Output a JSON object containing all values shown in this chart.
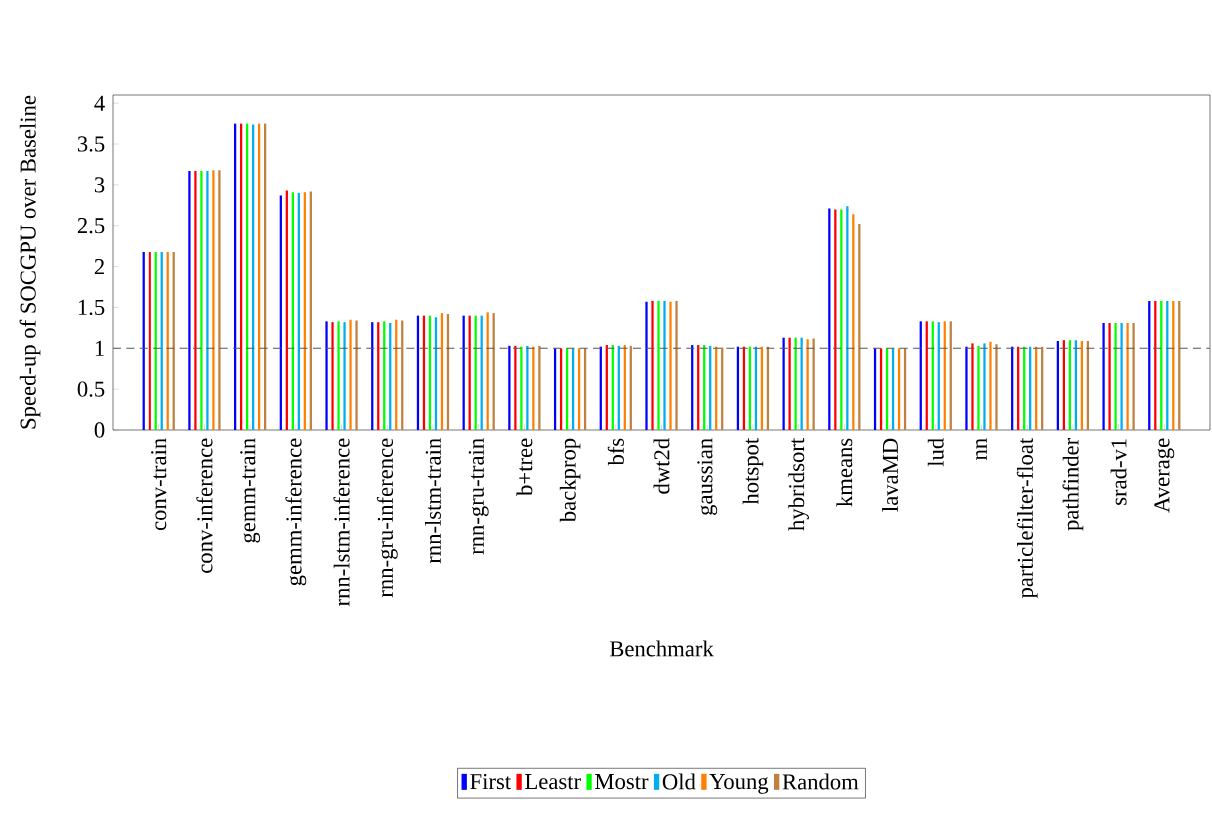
{
  "chart_data": {
    "type": "bar",
    "xlabel": "Benchmark",
    "ylabel": "Speed-up of SOCGPU over Baseline",
    "categories": [
      "conv-train",
      "conv-inference",
      "gemm-train",
      "gemm-inference",
      "rnn-lstm-inference",
      "rnn-gru-inference",
      "rnn-lstm-train",
      "rnn-gru-train",
      "b+tree",
      "backprop",
      "bfs",
      "dwt2d",
      "gaussian",
      "hotspot",
      "hybridsort",
      "kmeans",
      "lavaMD",
      "lud",
      "nn",
      "particlefilter-float",
      "pathfinder",
      "srad-v1",
      "Average"
    ],
    "series": [
      {
        "name": "First",
        "color": "#0000ff",
        "values": [
          2.18,
          3.17,
          3.75,
          2.87,
          1.33,
          1.32,
          1.4,
          1.4,
          1.03,
          1.0,
          1.02,
          1.57,
          1.04,
          1.02,
          1.13,
          2.71,
          1.0,
          1.33,
          1.02,
          1.02,
          1.09,
          1.31,
          1.58
        ]
      },
      {
        "name": "Leastr",
        "color": "#ff0000",
        "values": [
          2.18,
          3.17,
          3.75,
          2.93,
          1.32,
          1.32,
          1.4,
          1.4,
          1.03,
          1.0,
          1.04,
          1.58,
          1.04,
          1.02,
          1.13,
          2.7,
          1.0,
          1.33,
          1.06,
          1.02,
          1.1,
          1.31,
          1.58
        ]
      },
      {
        "name": "Mostr",
        "color": "#00ff00",
        "values": [
          2.18,
          3.17,
          3.75,
          2.91,
          1.33,
          1.33,
          1.4,
          1.4,
          1.02,
          1.0,
          1.04,
          1.58,
          1.04,
          1.02,
          1.13,
          2.7,
          1.0,
          1.33,
          1.03,
          1.02,
          1.1,
          1.31,
          1.58
        ]
      },
      {
        "name": "Old",
        "color": "#00aeef",
        "values": [
          2.18,
          3.17,
          3.74,
          2.9,
          1.32,
          1.31,
          1.38,
          1.4,
          1.03,
          1.0,
          1.03,
          1.58,
          1.03,
          1.02,
          1.13,
          2.74,
          1.0,
          1.32,
          1.06,
          1.02,
          1.1,
          1.31,
          1.58
        ]
      },
      {
        "name": "Young",
        "color": "#ff8000",
        "values": [
          2.18,
          3.18,
          3.75,
          2.91,
          1.35,
          1.35,
          1.43,
          1.44,
          1.02,
          1.0,
          1.04,
          1.57,
          1.02,
          1.02,
          1.11,
          2.64,
          1.0,
          1.33,
          1.08,
          1.02,
          1.09,
          1.31,
          1.58
        ]
      },
      {
        "name": "Random",
        "color": "#bf8040",
        "values": [
          2.18,
          3.18,
          3.75,
          2.92,
          1.34,
          1.34,
          1.42,
          1.43,
          1.03,
          1.0,
          1.03,
          1.58,
          1.01,
          1.02,
          1.12,
          2.52,
          1.0,
          1.33,
          1.05,
          1.02,
          1.09,
          1.31,
          1.58
        ]
      }
    ],
    "ylim": [
      0,
      4.1
    ],
    "yticks": [
      0,
      0.5,
      1,
      1.5,
      2,
      2.5,
      3,
      3.5,
      4
    ],
    "ref_lines": [
      {
        "axis": "y",
        "value": 1,
        "line_style": "dashed",
        "color": "#555555"
      }
    ],
    "grid": false,
    "legend": "bottom"
  }
}
